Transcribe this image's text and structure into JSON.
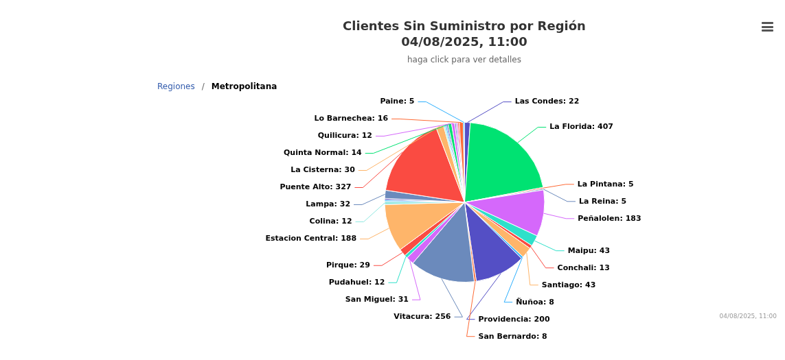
{
  "chart_data": {
    "type": "pie",
    "title": "Clientes Sin Suministro por Región\n04/08/2025, 11:00",
    "subtitle": "haga click para ver detalles",
    "categories": [
      "Las Condes",
      "La Florida",
      "La Pintana",
      "La Reina",
      "Peñalolen",
      "Maipu",
      "Conchali",
      "Santiago",
      "Ñuñoa",
      "Providencia",
      "San Bernardo",
      "Vitacura",
      "San Miguel",
      "Pudahuel",
      "Pirque",
      "Estacion Central",
      "Colina",
      null,
      null,
      "Lampa",
      "Puente Alto",
      "La Cisterna",
      null,
      null,
      null,
      "Quinta Normal",
      "Quilicura",
      null,
      null,
      null,
      "Lo Barnechea",
      "Paine"
    ],
    "values": [
      22,
      407,
      5,
      5,
      183,
      43,
      13,
      43,
      8,
      200,
      8,
      256,
      31,
      12,
      29,
      188,
      12,
      6,
      6,
      32,
      327,
      30,
      6,
      6,
      6,
      14,
      12,
      6,
      6,
      6,
      16,
      5
    ],
    "colors": [
      "#544fc5",
      "#00e272",
      "#fe6a35",
      "#6b8abc",
      "#d568fb",
      "#2ee0ca",
      "#fa4b42",
      "#feb56a",
      "#2caffe",
      "#544fc5",
      "#fe6a35",
      "#6b8abc",
      "#d568fb",
      "#2ee0ca",
      "#fa4b42",
      "#feb56a",
      "#91e8e1",
      "#2caffe",
      "#544fc5",
      "#6b8abc",
      "#fa4b42",
      "#feb56a",
      "#91e8e1",
      "#2caffe",
      "#544fc5",
      "#00e272",
      "#d568fb",
      "#6b8abc",
      "#d568fb",
      "#fa4b42",
      "#fe6a35",
      "#2caffe"
    ],
    "value_labels": [
      ": 22",
      ": 407",
      ": 5",
      ": 5",
      ": 183",
      ": 43",
      ": 13",
      ": 43",
      ": 8",
      ": 200",
      ": 8",
      ": 256",
      ": 31",
      ": 12",
      ": 29",
      ": 188",
      ": 12",
      null,
      null,
      ": 32",
      ": 327",
      ": 30",
      null,
      null,
      null,
      ": 14",
      ": 12",
      null,
      null,
      null,
      ": 16",
      ": 5"
    ],
    "legend": false,
    "annotations": [
      "Regiones",
      "/",
      "Metropolitana",
      "04/08/2025, 11:00"
    ]
  }
}
